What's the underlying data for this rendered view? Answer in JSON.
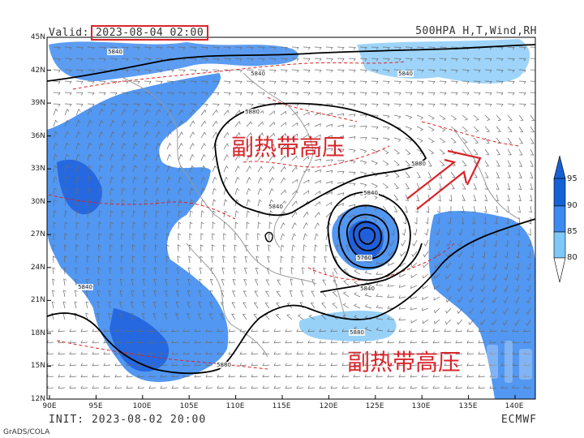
{
  "header": {
    "valid_prefix": "Valid:",
    "valid_time": "2023-08-04 02:00",
    "product": "500HPA H,T,Wind,RH"
  },
  "footer": {
    "init": "INIT: 2023-08-02 20:00",
    "model": "ECMWF",
    "credit": "GrADS/COLA"
  },
  "axes": {
    "lat_labels": [
      "45N",
      "42N",
      "39N",
      "36N",
      "33N",
      "30N",
      "27N",
      "24N",
      "21N",
      "18N",
      "15N",
      "12N"
    ],
    "lon_labels": [
      "90E",
      "95E",
      "100E",
      "105E",
      "110E",
      "115E",
      "120E",
      "125E",
      "130E",
      "135E",
      "140E"
    ]
  },
  "annotations": {
    "subtropical_high_north": "副热带高压",
    "subtropical_high_south": "副热带高压"
  },
  "contour_labels": [
    "5840",
    "5840",
    "5880",
    "5880",
    "5840",
    "5840",
    "5760",
    "5840",
    "5880",
    "5840",
    "5880",
    "5840"
  ],
  "colorbar": {
    "ticks": [
      "95",
      "90",
      "85",
      "80"
    ],
    "colors": [
      "#1560d4",
      "#3d8bf0",
      "#7fc8f8",
      "#ffffff"
    ]
  },
  "colors": {
    "rh_high": "#1f5fdc",
    "rh_mid": "#3f8cf0",
    "rh_low": "#86c9f7",
    "height_contour": "#000000",
    "temp_contour": "#e02020",
    "coastline": "#9a9a9a",
    "wind_barb": "#6a6a6a",
    "highlight": "#d9252b"
  }
}
